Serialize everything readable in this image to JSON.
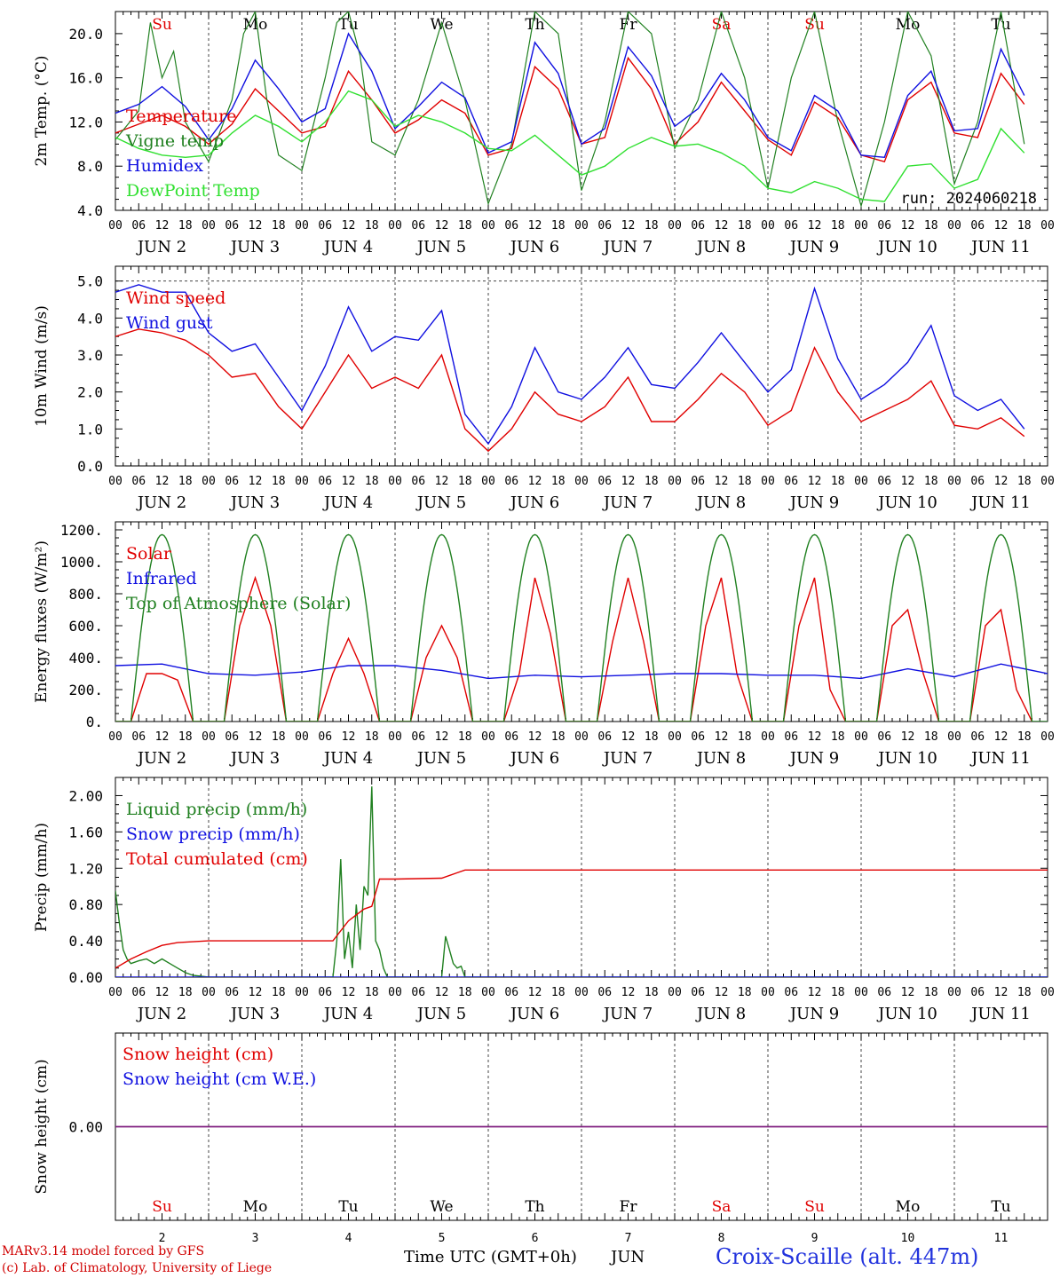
{
  "run_label": "run: 2024060218",
  "footer": {
    "model": "MARv3.14 model forced by GFS",
    "lab": "(c) Lab. of Climatology, University of Liege",
    "x_title": "Time UTC (GMT+0h)",
    "month": "JUN",
    "station": "Croix-Scaille (alt. 447m)"
  },
  "days": [
    {
      "abbr": "Su",
      "date": "JUN  2",
      "num": "2",
      "weekend": true
    },
    {
      "abbr": "Mo",
      "date": "JUN  3",
      "num": "3",
      "weekend": false
    },
    {
      "abbr": "Tu",
      "date": "JUN  4",
      "num": "4",
      "weekend": false
    },
    {
      "abbr": "We",
      "date": "JUN  5",
      "num": "5",
      "weekend": false
    },
    {
      "abbr": "Th",
      "date": "JUN  6",
      "num": "6",
      "weekend": false
    },
    {
      "abbr": "Fr",
      "date": "JUN  7",
      "num": "7",
      "weekend": false
    },
    {
      "abbr": "Sa",
      "date": "JUN  8",
      "num": "8",
      "weekend": true
    },
    {
      "abbr": "Su",
      "date": "JUN  9",
      "num": "9",
      "weekend": true
    },
    {
      "abbr": "Mo",
      "date": "JUN 10",
      "num": "10",
      "weekend": false
    },
    {
      "abbr": "Tu",
      "date": "JUN 11",
      "num": "11",
      "weekend": false
    }
  ],
  "hour_ticks": [
    "00",
    "06",
    "12",
    "18"
  ],
  "final_tick": "00",
  "colors": {
    "red": "#e00000",
    "green": "#208020",
    "blue": "#1010e0",
    "lightgreen": "#30e030",
    "purple": "#802080"
  },
  "chart_data": [
    {
      "id": "temp",
      "type": "line",
      "ylabel": "2m Temp. (°C)",
      "ylim": [
        4,
        22
      ],
      "yticks": [
        "4.0",
        "8.0",
        "12.0",
        "16.0",
        "20.0"
      ],
      "ytick_values": [
        4,
        8,
        12,
        16,
        20
      ],
      "series": [
        {
          "name": "Temperature",
          "color": "red",
          "x": [
            0,
            6,
            12,
            18,
            24,
            30,
            36,
            42,
            48,
            54,
            60,
            66,
            72,
            78,
            84,
            90,
            96,
            102,
            108,
            114,
            120,
            126,
            132,
            138,
            144,
            150,
            156,
            162,
            168,
            174,
            180,
            186,
            192,
            198,
            204,
            210,
            216,
            222,
            228,
            234
          ],
          "y": [
            11.0,
            11.8,
            12.6,
            11.6,
            10.0,
            11.8,
            15.0,
            13.0,
            11.0,
            11.6,
            16.6,
            14.0,
            11.0,
            12.2,
            14.0,
            12.8,
            9.0,
            9.6,
            17.0,
            15.0,
            10.0,
            10.6,
            17.8,
            15.0,
            10.0,
            12.0,
            15.6,
            13.0,
            10.4,
            9.0,
            13.8,
            12.4,
            9.0,
            8.4,
            14.0,
            15.6,
            11.0,
            10.6,
            16.4,
            13.6
          ]
        },
        {
          "name": "Vigne temp",
          "color": "green",
          "x": [
            0,
            6,
            9,
            12,
            15,
            18,
            24,
            30,
            33,
            36,
            39,
            42,
            48,
            54,
            57,
            60,
            63,
            66,
            72,
            78,
            84,
            90,
            96,
            102,
            108,
            114,
            120,
            126,
            132,
            138,
            144,
            150,
            156,
            162,
            168,
            174,
            180,
            186,
            192,
            198,
            204,
            210,
            216,
            222,
            228,
            234
          ],
          "y": [
            10.4,
            13.0,
            21.0,
            16.0,
            18.4,
            12.0,
            8.4,
            14.0,
            20.0,
            22.0,
            14.0,
            9.0,
            7.6,
            16.0,
            21.0,
            22.0,
            18.0,
            10.2,
            9.0,
            14.0,
            21.0,
            14.0,
            4.6,
            10.0,
            22.0,
            20.0,
            5.8,
            12.0,
            22.0,
            20.0,
            9.6,
            14.0,
            22.0,
            16.0,
            6.0,
            16.0,
            22.0,
            12.0,
            4.4,
            12.0,
            22.0,
            18.0,
            6.4,
            12.0,
            22.0,
            10.0
          ]
        },
        {
          "name": "Humidex",
          "color": "blue",
          "x": [
            0,
            6,
            12,
            18,
            24,
            30,
            36,
            42,
            48,
            54,
            60,
            66,
            72,
            78,
            84,
            90,
            96,
            102,
            108,
            114,
            120,
            126,
            132,
            138,
            144,
            150,
            156,
            162,
            168,
            174,
            180,
            186,
            192,
            198,
            204,
            210,
            216,
            222,
            228,
            234
          ],
          "y": [
            12.8,
            13.6,
            15.2,
            13.4,
            10.4,
            13.2,
            17.6,
            15.0,
            12.0,
            13.2,
            20.0,
            16.6,
            11.4,
            13.4,
            15.6,
            14.2,
            9.2,
            10.2,
            19.2,
            16.4,
            10.0,
            11.4,
            18.8,
            16.2,
            11.6,
            13.2,
            16.4,
            14.0,
            10.6,
            9.4,
            14.4,
            13.0,
            9.0,
            8.8,
            14.4,
            16.6,
            11.2,
            11.4,
            18.6,
            14.4
          ]
        },
        {
          "name": "DewPoint Temp",
          "color": "lightgreen",
          "x": [
            0,
            6,
            12,
            18,
            24,
            30,
            36,
            42,
            48,
            54,
            60,
            66,
            72,
            78,
            84,
            90,
            96,
            102,
            108,
            114,
            120,
            126,
            132,
            138,
            144,
            150,
            156,
            162,
            168,
            174,
            180,
            186,
            192,
            198,
            204,
            210,
            216,
            222,
            228,
            234
          ],
          "y": [
            10.6,
            9.6,
            9.0,
            8.8,
            9.0,
            11.0,
            12.6,
            11.6,
            10.2,
            12.0,
            14.8,
            14.0,
            11.6,
            12.6,
            12.0,
            11.0,
            9.6,
            9.4,
            10.8,
            9.0,
            7.2,
            8.0,
            9.6,
            10.6,
            9.8,
            10.0,
            9.2,
            8.0,
            6.0,
            5.6,
            6.6,
            6.0,
            5.0,
            4.8,
            8.0,
            8.2,
            6.0,
            6.8,
            11.4,
            9.2
          ]
        }
      ]
    },
    {
      "id": "wind",
      "type": "line",
      "ylabel": "10m Wind (m/s)",
      "ylim": [
        0,
        5.4
      ],
      "yticks": [
        "0.0",
        "1.0",
        "2.0",
        "3.0",
        "4.0",
        "5.0"
      ],
      "ytick_values": [
        0,
        1,
        2,
        3,
        4,
        5
      ],
      "dashed_y": 5.0,
      "series": [
        {
          "name": "Wind speed",
          "color": "red",
          "x": [
            0,
            6,
            12,
            18,
            24,
            30,
            36,
            42,
            48,
            54,
            60,
            66,
            72,
            78,
            84,
            90,
            96,
            102,
            108,
            114,
            120,
            126,
            132,
            138,
            144,
            150,
            156,
            162,
            168,
            174,
            180,
            186,
            192,
            198,
            204,
            210,
            216,
            222,
            228,
            234
          ],
          "y": [
            3.5,
            3.7,
            3.6,
            3.4,
            3.0,
            2.4,
            2.5,
            1.6,
            1.0,
            2.0,
            3.0,
            2.1,
            2.4,
            2.1,
            3.0,
            1.0,
            0.4,
            1.0,
            2.0,
            1.4,
            1.2,
            1.6,
            2.4,
            1.2,
            1.2,
            1.8,
            2.5,
            2.0,
            1.1,
            1.5,
            3.2,
            2.0,
            1.2,
            1.5,
            1.8,
            2.3,
            1.1,
            1.0,
            1.3,
            0.8
          ]
        },
        {
          "name": "Wind gust",
          "color": "blue",
          "x": [
            0,
            6,
            12,
            18,
            24,
            30,
            36,
            42,
            48,
            54,
            60,
            66,
            72,
            78,
            84,
            90,
            96,
            102,
            108,
            114,
            120,
            126,
            132,
            138,
            144,
            150,
            156,
            162,
            168,
            174,
            180,
            186,
            192,
            198,
            204,
            210,
            216,
            222,
            228,
            234
          ],
          "y": [
            4.7,
            4.9,
            4.7,
            4.7,
            3.6,
            3.1,
            3.3,
            2.4,
            1.5,
            2.7,
            4.3,
            3.1,
            3.5,
            3.4,
            4.2,
            1.4,
            0.6,
            1.6,
            3.2,
            2.0,
            1.8,
            2.4,
            3.2,
            2.2,
            2.1,
            2.8,
            3.6,
            2.8,
            2.0,
            2.6,
            4.8,
            2.9,
            1.8,
            2.2,
            2.8,
            3.8,
            1.9,
            1.5,
            1.8,
            1.0
          ]
        }
      ]
    },
    {
      "id": "energy",
      "type": "line",
      "ylabel": "Energy fluxes (W/m²)",
      "ylim": [
        0,
        1250
      ],
      "yticks": [
        "0.",
        "200.",
        "400.",
        "600.",
        "800.",
        "1000.",
        "1200."
      ],
      "ytick_values": [
        0,
        200,
        400,
        600,
        800,
        1000,
        1200
      ],
      "series": [
        {
          "name": "Solar",
          "color": "red",
          "x": [
            0,
            4,
            8,
            12,
            16,
            20,
            24,
            28,
            32,
            36,
            40,
            44,
            48,
            52,
            56,
            60,
            64,
            68,
            72,
            76,
            80,
            84,
            88,
            92,
            96,
            100,
            104,
            108,
            112,
            116,
            120,
            124,
            128,
            132,
            136,
            140,
            144,
            148,
            152,
            156,
            160,
            164,
            168,
            172,
            176,
            180,
            184,
            188,
            192,
            196,
            200,
            204,
            208,
            212,
            216,
            220,
            224,
            228,
            232,
            236
          ],
          "y": [
            0,
            0,
            300,
            300,
            260,
            0,
            0,
            0,
            600,
            900,
            600,
            0,
            0,
            0,
            300,
            520,
            300,
            0,
            0,
            0,
            400,
            600,
            400,
            0,
            0,
            0,
            300,
            900,
            550,
            0,
            0,
            0,
            500,
            900,
            500,
            0,
            0,
            0,
            600,
            900,
            300,
            0,
            0,
            0,
            600,
            900,
            200,
            0,
            0,
            0,
            600,
            700,
            300,
            0,
            0,
            0,
            600,
            700,
            200,
            0
          ]
        },
        {
          "name": "Infrared",
          "color": "blue",
          "x": [
            0,
            12,
            24,
            36,
            48,
            60,
            72,
            84,
            96,
            108,
            120,
            132,
            144,
            156,
            168,
            180,
            192,
            204,
            216,
            228,
            240
          ],
          "y": [
            350,
            360,
            300,
            290,
            310,
            350,
            350,
            320,
            270,
            290,
            280,
            290,
            300,
            300,
            290,
            290,
            270,
            330,
            280,
            360,
            300
          ]
        },
        {
          "name": "Top of Atmosphere (Solar)",
          "color": "green",
          "type": "diurnal",
          "peak": 1170,
          "sunrise": 4,
          "sunset": 20
        }
      ]
    },
    {
      "id": "precip",
      "type": "line",
      "ylabel": "Precip (mm/h)",
      "ylim": [
        0,
        2.2
      ],
      "yticks": [
        "0.00",
        "0.40",
        "0.80",
        "1.20",
        "1.60",
        "2.00"
      ],
      "ytick_values": [
        0,
        0.4,
        0.8,
        1.2,
        1.6,
        2.0
      ],
      "series": [
        {
          "name": "Liquid precip (mm/h)",
          "color": "green",
          "x": [
            0,
            1,
            2,
            3,
            4,
            6,
            8,
            10,
            12,
            14,
            16,
            18,
            20,
            24,
            56,
            57,
            58,
            59,
            60,
            61,
            62,
            63,
            64,
            65,
            66,
            67,
            68,
            69,
            70,
            72,
            84,
            85,
            86,
            87,
            88,
            89,
            90,
            120,
            240
          ],
          "y": [
            0.95,
            0.6,
            0.3,
            0.2,
            0.15,
            0.18,
            0.2,
            0.15,
            0.2,
            0.15,
            0.1,
            0.05,
            0.02,
            0,
            0,
            0.4,
            1.3,
            0.2,
            0.5,
            0.1,
            0.8,
            0.3,
            1.0,
            0.9,
            2.1,
            0.4,
            0.3,
            0.1,
            0,
            0,
            0,
            0.45,
            0.3,
            0.15,
            0.1,
            0.12,
            0,
            0,
            0
          ]
        },
        {
          "name": "Snow precip (mm/h)",
          "color": "blue",
          "x": [
            0,
            240
          ],
          "y": [
            0,
            0
          ]
        },
        {
          "name": "Total cumulated (cm)",
          "color": "red",
          "x": [
            0,
            4,
            8,
            12,
            16,
            20,
            24,
            48,
            56,
            60,
            64,
            66,
            68,
            72,
            84,
            88,
            90,
            100,
            240
          ],
          "y": [
            0.1,
            0.2,
            0.28,
            0.35,
            0.38,
            0.39,
            0.4,
            0.4,
            0.4,
            0.62,
            0.75,
            0.78,
            1.08,
            1.08,
            1.09,
            1.15,
            1.18,
            1.18,
            1.18
          ]
        }
      ]
    },
    {
      "id": "snow",
      "type": "line",
      "ylabel": "Snow height (cm)",
      "ylim": [
        -1,
        1
      ],
      "yticks": [
        "0.00"
      ],
      "ytick_values": [
        0
      ],
      "series": [
        {
          "name": "Snow height (cm)",
          "color": "red",
          "x": [
            0,
            240
          ],
          "y": [
            0,
            0
          ]
        },
        {
          "name": "Snow height (cm W.E.)",
          "color": "blue",
          "x": [
            0,
            240
          ],
          "y": [
            0,
            0
          ]
        }
      ]
    }
  ]
}
